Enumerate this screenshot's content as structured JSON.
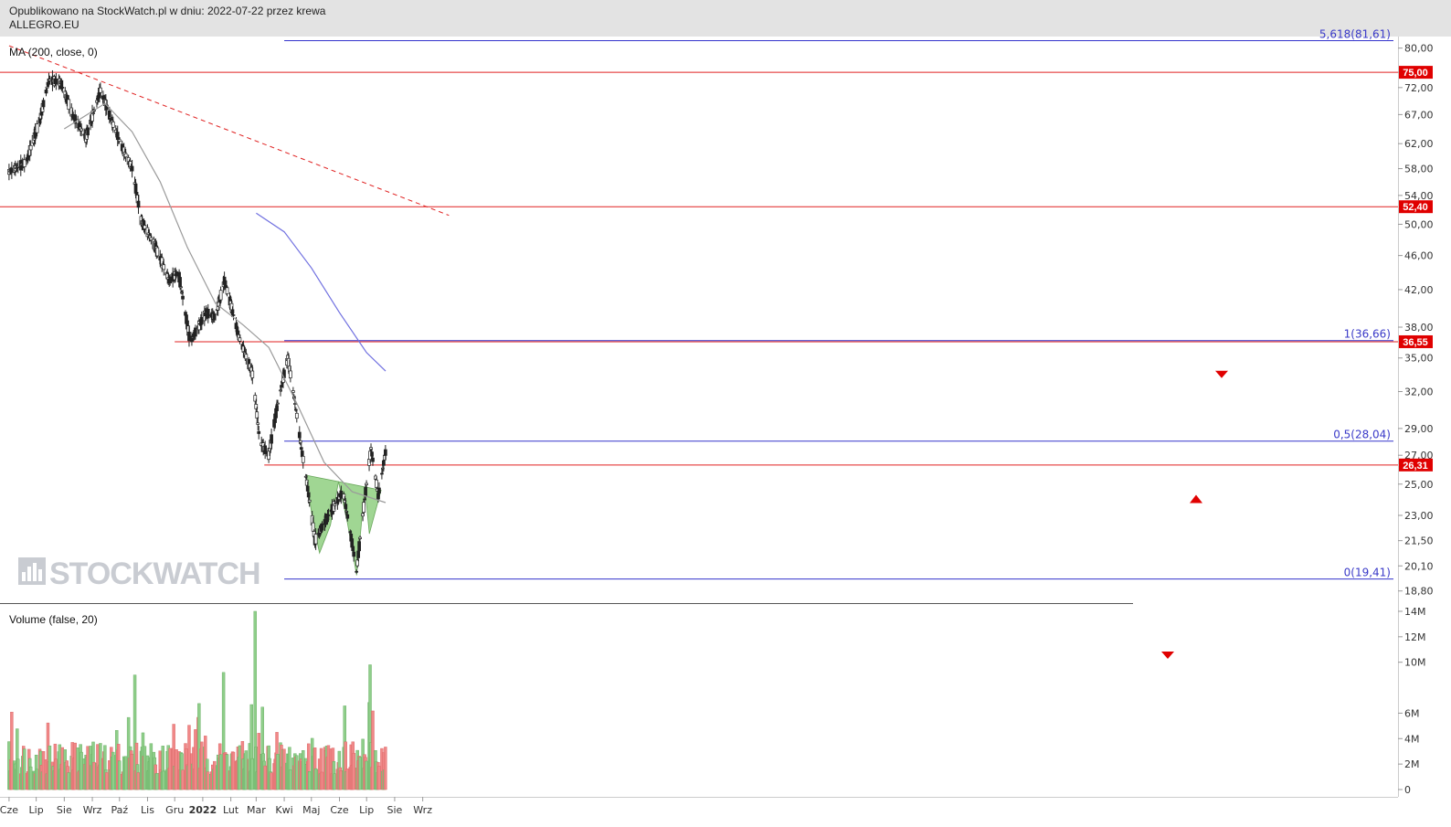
{
  "header": {
    "line1": "Opublikowano na StockWatch.pl w dniu: 2022-07-22 przez krewa",
    "line2": "ALLEGRO.EU"
  },
  "indicators": {
    "price_label": "MA (200, close, 0)",
    "volume_label": "Volume (false, 20)"
  },
  "watermark": "STOCKWATCH",
  "colors": {
    "up": "#8fce8a",
    "down": "#f08888",
    "resistance": "#e02020",
    "fib": "#3333cc",
    "ma200": "#9a9a9a",
    "ma_blue": "#7070e0",
    "pattern_fill": "#88cc78",
    "badge": "#e00000"
  },
  "chart_data": [
    {
      "type": "candlestick",
      "title": "ALLEGRO.EU",
      "x_tick_labels": [
        "Cze",
        "Lip",
        "Sie",
        "Wrz",
        "Paź",
        "Lis",
        "Gru",
        "2022",
        "Lut",
        "Mar",
        "Kwi",
        "Maj",
        "Cze",
        "Lip",
        "Sie",
        "Wrz"
      ],
      "y_tick_labels": [
        "80,00",
        "75,00",
        "72,00",
        "67,00",
        "62,00",
        "58,00",
        "54,00",
        "50,00",
        "46,00",
        "42,00",
        "38,00",
        "35,00",
        "32,00",
        "29,00",
        "27,00",
        "25,00",
        "23,00",
        "21,50",
        "20,10",
        "18,80"
      ],
      "ylim": [
        18.2,
        82.5
      ],
      "y_scale": "log",
      "price_path": [
        {
          "date": "2021-06-01",
          "price": 57.5
        },
        {
          "date": "2021-06-20",
          "price": 59.0
        },
        {
          "date": "2021-07-05",
          "price": 66.0
        },
        {
          "date": "2021-07-15",
          "price": 73.5
        },
        {
          "date": "2021-07-28",
          "price": 73.0
        },
        {
          "date": "2021-08-10",
          "price": 67.0
        },
        {
          "date": "2021-08-25",
          "price": 63.0
        },
        {
          "date": "2021-09-10",
          "price": 71.5
        },
        {
          "date": "2021-09-22",
          "price": 66.0
        },
        {
          "date": "2021-10-05",
          "price": 61.0
        },
        {
          "date": "2021-10-15",
          "price": 58.0
        },
        {
          "date": "2021-10-25",
          "price": 50.5
        },
        {
          "date": "2021-11-10",
          "price": 47.0
        },
        {
          "date": "2021-11-25",
          "price": 43.0
        },
        {
          "date": "2021-12-05",
          "price": 44.0
        },
        {
          "date": "2021-12-18",
          "price": 36.5
        },
        {
          "date": "2022-01-05",
          "price": 39.5
        },
        {
          "date": "2022-01-15",
          "price": 39.0
        },
        {
          "date": "2022-01-25",
          "price": 43.0
        },
        {
          "date": "2022-02-10",
          "price": 37.0
        },
        {
          "date": "2022-02-25",
          "price": 33.5
        },
        {
          "date": "2022-03-05",
          "price": 28.0
        },
        {
          "date": "2022-03-15",
          "price": 27.0
        },
        {
          "date": "2022-03-25",
          "price": 31.0
        },
        {
          "date": "2022-04-05",
          "price": 35.0
        },
        {
          "date": "2022-04-20",
          "price": 27.5
        },
        {
          "date": "2022-05-05",
          "price": 21.5
        },
        {
          "date": "2022-05-20",
          "price": 23.0
        },
        {
          "date": "2022-06-05",
          "price": 24.5
        },
        {
          "date": "2022-06-20",
          "price": 19.8
        },
        {
          "date": "2022-06-28",
          "price": 23.5
        },
        {
          "date": "2022-07-06",
          "price": 27.5
        },
        {
          "date": "2022-07-14",
          "price": 24.2
        },
        {
          "date": "2022-07-22",
          "price": 27.2
        }
      ],
      "ma200": [
        {
          "date": "2021-08-01",
          "price": 64.5
        },
        {
          "date": "2021-09-15",
          "price": 69.0
        },
        {
          "date": "2021-10-15",
          "price": 64.0
        },
        {
          "date": "2021-11-15",
          "price": 56.0
        },
        {
          "date": "2021-12-15",
          "price": 47.0
        },
        {
          "date": "2022-01-15",
          "price": 40.5
        },
        {
          "date": "2022-02-15",
          "price": 38.2
        },
        {
          "date": "2022-03-15",
          "price": 36.0
        },
        {
          "date": "2022-04-15",
          "price": 31.0
        },
        {
          "date": "2022-05-15",
          "price": 26.5
        },
        {
          "date": "2022-06-15",
          "price": 24.5
        },
        {
          "date": "2022-07-22",
          "price": 23.8
        }
      ],
      "ma_blue": [
        {
          "date": "2022-03-01",
          "price": 51.5
        },
        {
          "date": "2022-04-01",
          "price": 49.0
        },
        {
          "date": "2022-05-01",
          "price": 44.5
        },
        {
          "date": "2022-06-01",
          "price": 39.5
        },
        {
          "date": "2022-07-01",
          "price": 35.5
        },
        {
          "date": "2022-07-22",
          "price": 33.8
        }
      ],
      "horizontal_levels": [
        {
          "label": "75,00",
          "price": 75.0
        },
        {
          "label": "52,40",
          "price": 52.4
        },
        {
          "label": "36,55",
          "price": 36.55,
          "from": "2021-12-01"
        },
        {
          "label": "26,31",
          "price": 26.31,
          "from": "2022-03-10"
        }
      ],
      "fibonacci": [
        {
          "label": "5,618(81,61)",
          "price": 81.61
        },
        {
          "label": "1(36,66)",
          "price": 36.66
        },
        {
          "label": "0,5(28,04)",
          "price": 28.04
        },
        {
          "label": "0(19,41)",
          "price": 19.41
        }
      ],
      "trendline": {
        "start": {
          "date": "2021-06-01",
          "price": 80.5
        },
        "end": {
          "date": "2022-09-30",
          "price": 51.2
        }
      },
      "pattern": "inverse head and shoulders",
      "markers": [
        "target arrow down at 33",
        "arrow up at breakout"
      ]
    },
    {
      "type": "bar",
      "title": "Volume (false, 20)",
      "y_tick_labels": [
        "14M",
        "12M",
        "10M",
        "6M",
        "4M",
        "2M",
        "0"
      ],
      "ylim": [
        0,
        14500000
      ],
      "notable_values": [
        {
          "date": "2022-02-28",
          "value": 14000000
        },
        {
          "date": "2022-07-05",
          "value": 9800000
        },
        {
          "date": "2021-10-18",
          "value": 9000000
        },
        {
          "date": "2022-01-24",
          "value": 9200000
        }
      ]
    }
  ]
}
